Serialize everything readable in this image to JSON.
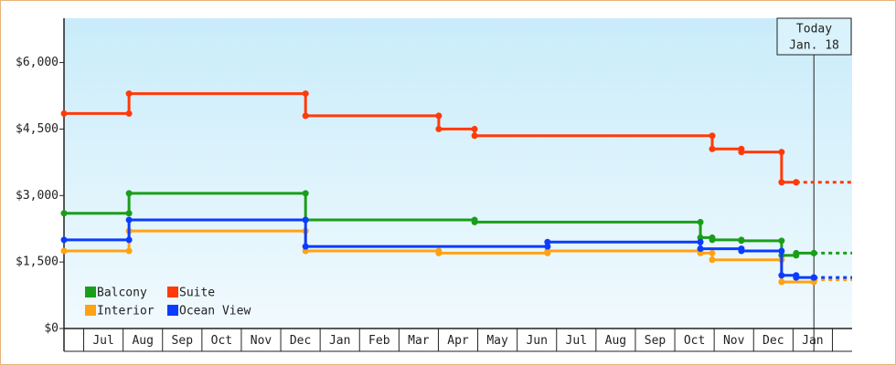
{
  "chart_data": {
    "type": "step",
    "ylim": [
      0,
      7000
    ],
    "yticks": [
      {
        "value": 0,
        "label": "$0"
      },
      {
        "value": 1500,
        "label": "$1,500"
      },
      {
        "value": 3000,
        "label": "$3,000"
      },
      {
        "value": 4500,
        "label": "$4,500"
      },
      {
        "value": 6000,
        "label": "$6,000"
      }
    ],
    "xlim": [
      -0.5,
      19.5
    ],
    "xticks": [
      {
        "value": 0.5,
        "label": "Jul"
      },
      {
        "value": 1.5,
        "label": "Aug"
      },
      {
        "value": 2.5,
        "label": "Sep"
      },
      {
        "value": 3.5,
        "label": "Oct"
      },
      {
        "value": 4.5,
        "label": "Nov"
      },
      {
        "value": 5.5,
        "label": "Dec"
      },
      {
        "value": 6.5,
        "label": "Jan"
      },
      {
        "value": 7.5,
        "label": "Feb"
      },
      {
        "value": 8.5,
        "label": "Mar"
      },
      {
        "value": 9.5,
        "label": "Apr"
      },
      {
        "value": 10.5,
        "label": "May"
      },
      {
        "value": 11.5,
        "label": "Jun"
      },
      {
        "value": 12.5,
        "label": "Jul"
      },
      {
        "value": 13.5,
        "label": "Aug"
      },
      {
        "value": 14.5,
        "label": "Sep"
      },
      {
        "value": 15.5,
        "label": "Oct"
      },
      {
        "value": 16.5,
        "label": "Nov"
      },
      {
        "value": 17.5,
        "label": "Dec"
      },
      {
        "value": 18.5,
        "label": "Jan"
      }
    ],
    "today": {
      "x": 18.53,
      "label": [
        "Today",
        "Jan. 18"
      ]
    },
    "series": [
      {
        "name": "Balcony",
        "color": "#1a9e1a",
        "x": [
          -0.5,
          1.15,
          5.63,
          9.92,
          15.65,
          15.95,
          16.69,
          17.71,
          18.08,
          18.53
        ],
        "values": [
          2600,
          3050,
          2450,
          2400,
          2050,
          2000,
          1980,
          1650,
          1700,
          1700
        ]
      },
      {
        "name": "Suite",
        "color": "#ff3a0a",
        "x": [
          -0.5,
          1.15,
          5.63,
          9.01,
          9.92,
          15.95,
          16.69,
          17.71,
          18.08
        ],
        "values": [
          4850,
          5300,
          4800,
          4500,
          4350,
          4050,
          3980,
          3300,
          3300
        ]
      },
      {
        "name": "Interior",
        "color": "#ffa214",
        "x": [
          -0.5,
          1.15,
          5.63,
          9.01,
          11.77,
          15.65,
          15.95,
          17.71,
          18.53
        ],
        "values": [
          1750,
          2200,
          1750,
          1700,
          1750,
          1700,
          1550,
          1050,
          1100
        ]
      },
      {
        "name": "Ocean View",
        "color": "#0a3cff",
        "x": [
          -0.5,
          1.15,
          5.63,
          11.77,
          15.65,
          16.69,
          17.71,
          18.08,
          18.53
        ],
        "values": [
          2000,
          2450,
          1850,
          1950,
          1800,
          1750,
          1200,
          1150,
          1150
        ]
      }
    ]
  }
}
